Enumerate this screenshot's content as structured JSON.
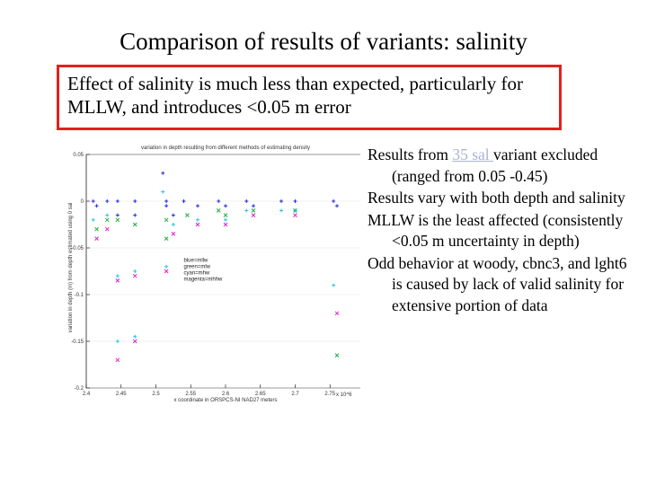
{
  "slide": {
    "title": "Comparison of results of variants: salinity",
    "callout": "Effect of salinity is much less than expected, particularly for MLLW, and introduces <0.05 m error"
  },
  "bullets": [
    {
      "before": "Results from ",
      "highlight": "35 sal ",
      "after": "variant excluded (ranged from 0.05 -0.45)"
    },
    {
      "text": "Results vary with both depth and salinity"
    },
    {
      "text": "MLLW is the least affected (consistently <0.05 m uncertainty in depth)"
    },
    {
      "text": "Odd behavior at woody, cbnc3, and lght6 is caused by lack of valid salinity for extensive portion of data"
    }
  ],
  "colors": {
    "callout_border": "#e0211f",
    "highlight_text": "#a9b4cf",
    "series_blue": "#1f2bd6",
    "series_green": "#1fae3f",
    "series_cyan": "#23c4e0",
    "series_magenta": "#d826c9"
  },
  "chart_data": {
    "type": "scatter",
    "title": "variation in depth resulting from different methods of estimating density",
    "xlabel": "x coordinate in ORSPCS-NI NAD27 meters",
    "ylabel": "variation in depth (m) from depth estimated using 0 sal",
    "x_multiplier": "x 10^6",
    "xlim": [
      2.4,
      2.8
    ],
    "ylim": [
      -0.2,
      0.05
    ],
    "x_ticks": [
      "2.4",
      "2.45",
      "2.5",
      "2.55",
      "2.6",
      "2.65",
      "2.7",
      "2.75",
      "2.8"
    ],
    "y_ticks": [
      "0.05",
      "0",
      "-0.05",
      "-0.1",
      "-0.15",
      "-0.2"
    ],
    "legend_lines": [
      "blue=mllw",
      "green=mlw",
      "cyan=mhw",
      "magenta=mhhw"
    ],
    "legend_placement": "center-left",
    "series": [
      {
        "name": "mllw",
        "color": "#1f2bd6",
        "points": [
          [
            2.41,
            0.0
          ],
          [
            2.415,
            -0.005
          ],
          [
            2.43,
            0.0
          ],
          [
            2.445,
            0.0
          ],
          [
            2.445,
            -0.015
          ],
          [
            2.47,
            0.0
          ],
          [
            2.47,
            -0.015
          ],
          [
            2.51,
            0.03
          ],
          [
            2.515,
            0.0
          ],
          [
            2.515,
            -0.005
          ],
          [
            2.525,
            -0.015
          ],
          [
            2.54,
            0.0
          ],
          [
            2.56,
            -0.005
          ],
          [
            2.59,
            0.0
          ],
          [
            2.6,
            -0.005
          ],
          [
            2.63,
            0.0
          ],
          [
            2.64,
            -0.005
          ],
          [
            2.68,
            0.0
          ],
          [
            2.7,
            0.0
          ],
          [
            2.755,
            0.0
          ],
          [
            2.76,
            -0.005
          ]
        ]
      },
      {
        "name": "mlw",
        "color": "#1fae3f",
        "points": [
          [
            2.415,
            -0.03
          ],
          [
            2.43,
            -0.02
          ],
          [
            2.445,
            -0.02
          ],
          [
            2.47,
            -0.025
          ],
          [
            2.515,
            -0.04
          ],
          [
            2.515,
            -0.02
          ],
          [
            2.545,
            -0.015
          ],
          [
            2.59,
            -0.01
          ],
          [
            2.6,
            -0.015
          ],
          [
            2.64,
            -0.01
          ],
          [
            2.7,
            -0.01
          ],
          [
            2.76,
            -0.165
          ]
        ]
      },
      {
        "name": "mhw",
        "color": "#23c4e0",
        "points": [
          [
            2.41,
            -0.02
          ],
          [
            2.43,
            -0.015
          ],
          [
            2.445,
            -0.08
          ],
          [
            2.445,
            -0.15
          ],
          [
            2.47,
            -0.075
          ],
          [
            2.47,
            -0.145
          ],
          [
            2.51,
            0.01
          ],
          [
            2.515,
            -0.07
          ],
          [
            2.525,
            -0.025
          ],
          [
            2.56,
            -0.02
          ],
          [
            2.6,
            -0.02
          ],
          [
            2.63,
            -0.01
          ],
          [
            2.68,
            -0.01
          ],
          [
            2.7,
            -0.01
          ],
          [
            2.755,
            -0.09
          ]
        ]
      },
      {
        "name": "mhhw",
        "color": "#d826c9",
        "points": [
          [
            2.415,
            -0.04
          ],
          [
            2.43,
            -0.03
          ],
          [
            2.445,
            -0.085
          ],
          [
            2.445,
            -0.17
          ],
          [
            2.47,
            -0.08
          ],
          [
            2.47,
            -0.15
          ],
          [
            2.515,
            -0.075
          ],
          [
            2.525,
            -0.035
          ],
          [
            2.56,
            -0.025
          ],
          [
            2.6,
            -0.025
          ],
          [
            2.64,
            -0.015
          ],
          [
            2.7,
            -0.015
          ],
          [
            2.76,
            -0.12
          ]
        ]
      }
    ]
  }
}
